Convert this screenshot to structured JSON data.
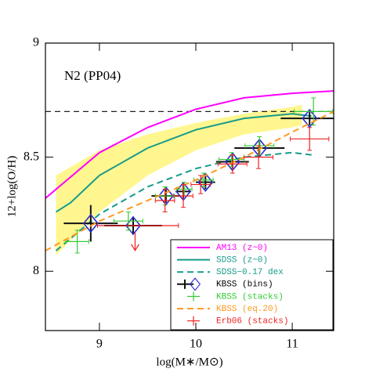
{
  "chart_data": {
    "type": "line",
    "annotation": "N2 (PP04)",
    "x_label": "log(M∗/M⊙)",
    "y_label": "12+log(O/H)",
    "xlim": [
      8.44,
      11.43
    ],
    "ylim": [
      7.74,
      9.0
    ],
    "xticks": [
      9,
      10,
      11
    ],
    "yticks": [
      8,
      8.5,
      9
    ],
    "legend": "lower right",
    "reference_line": {
      "value": 8.7,
      "color": "#222222"
    },
    "band": {
      "color": "#fff36a",
      "x": [
        8.55,
        9.0,
        9.5,
        10.0,
        10.5,
        11.0,
        11.1
      ],
      "lower": [
        8.07,
        8.26,
        8.42,
        8.53,
        8.6,
        8.63,
        8.64
      ],
      "upper": [
        8.42,
        8.53,
        8.6,
        8.65,
        8.69,
        8.72,
        8.73
      ]
    },
    "upper_limit": {
      "x": 9.37,
      "value": 8.17,
      "color": "#ee2222"
    },
    "series": [
      {
        "name": "AM13 (z~0)",
        "kind": "line",
        "dash": false,
        "color": "#ff00ff",
        "x": [
          8.44,
          9.0,
          9.5,
          10.0,
          10.5,
          11.0,
          11.43
        ],
        "values": [
          8.32,
          8.52,
          8.63,
          8.71,
          8.76,
          8.78,
          8.79
        ]
      },
      {
        "name": "SDSS (z~0)",
        "kind": "line",
        "dash": false,
        "color": "#169a8a",
        "x": [
          8.55,
          8.7,
          9.0,
          9.5,
          10.0,
          10.5,
          11.0,
          11.2
        ],
        "values": [
          8.26,
          8.3,
          8.42,
          8.54,
          8.62,
          8.67,
          8.69,
          8.68
        ]
      },
      {
        "name": "SDSS−0.17 dex",
        "kind": "line",
        "dash": true,
        "color": "#169a8a",
        "x": [
          8.55,
          9.0,
          9.5,
          10.0,
          10.5,
          11.0,
          11.2
        ],
        "values": [
          8.09,
          8.25,
          8.37,
          8.45,
          8.5,
          8.52,
          8.51
        ]
      },
      {
        "name": "KBSS (bins)",
        "kind": "errorbar",
        "color": "#111111",
        "marker_color": "#2b2bd0",
        "x": [
          8.91,
          9.35,
          9.69,
          9.87,
          10.1,
          10.38,
          10.66,
          11.18
        ],
        "values": [
          8.21,
          8.2,
          8.33,
          8.35,
          8.39,
          8.48,
          8.54,
          8.67
        ],
        "xerr": [
          0.28,
          0.3,
          0.15,
          0.08,
          0.1,
          0.17,
          0.26,
          0.3
        ],
        "yerr": [
          0.08,
          0.04,
          0.03,
          0.03,
          0.03,
          0.03,
          0.03,
          0.03
        ]
      },
      {
        "name": "KBSS (stacks)",
        "kind": "errorbar",
        "color": "#33cc33",
        "x": [
          8.77,
          9.3,
          9.68,
          9.88,
          10.08,
          10.37,
          10.66,
          11.22
        ],
        "values": [
          8.13,
          8.22,
          8.33,
          8.36,
          8.4,
          8.49,
          8.55,
          8.7
        ],
        "xerr": [
          0.12,
          0.15,
          0.1,
          0.08,
          0.1,
          0.13,
          0.15,
          0.2
        ],
        "yerr": [
          0.05,
          0.04,
          0.04,
          0.03,
          0.03,
          0.03,
          0.04,
          0.06
        ]
      },
      {
        "name": "KBSS (eq.20)",
        "kind": "line",
        "dash": true,
        "color": "#ff9922",
        "x": [
          8.44,
          9.0,
          9.5,
          10.0,
          10.5,
          11.0,
          11.43
        ],
        "values": [
          8.09,
          8.22,
          8.31,
          8.4,
          8.5,
          8.61,
          8.7
        ]
      },
      {
        "name": "Erb06 (stacks)",
        "kind": "errorbar",
        "color": "#ee2222",
        "x": [
          9.4,
          9.68,
          9.87,
          10.05,
          10.38,
          10.65,
          11.18
        ],
        "values": [
          8.2,
          8.31,
          8.33,
          8.38,
          8.47,
          8.5,
          8.58
        ],
        "xerr": [
          0.42,
          0.1,
          0.1,
          0.1,
          0.15,
          0.15,
          0.2
        ],
        "yerr": [
          0.0,
          0.05,
          0.05,
          0.04,
          0.04,
          0.05,
          0.05
        ]
      }
    ]
  }
}
